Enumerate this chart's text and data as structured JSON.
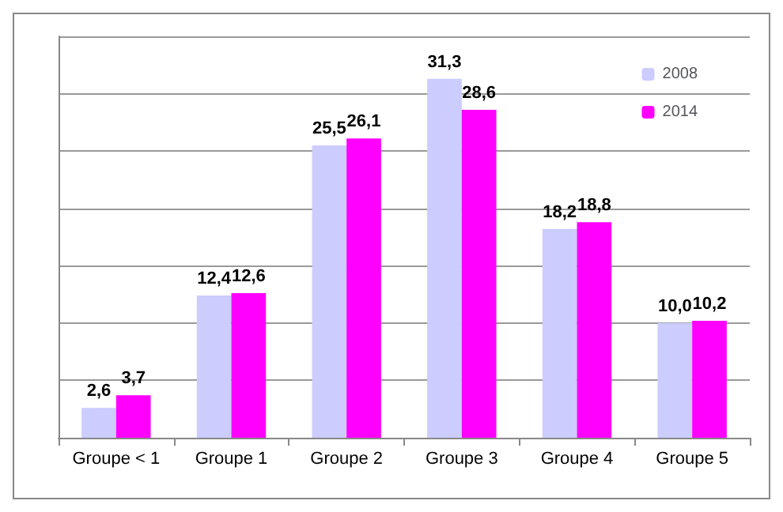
{
  "chart_data": {
    "type": "bar",
    "categories": [
      "Groupe < 1",
      "Groupe 1",
      "Groupe 2",
      "Groupe 3",
      "Groupe 4",
      "Groupe 5"
    ],
    "series": [
      {
        "name": "2008",
        "color": "#ccccff",
        "values": [
          2.6,
          12.4,
          25.5,
          31.3,
          18.2,
          10.0
        ],
        "value_labels": [
          "2,6",
          "12,4",
          "25,5",
          "31,3",
          "18,2",
          "10,0"
        ]
      },
      {
        "name": "2014",
        "color": "#ff00ff",
        "values": [
          3.7,
          12.6,
          26.1,
          28.6,
          18.8,
          10.2
        ],
        "value_labels": [
          "3,7",
          "12,6",
          "26,1",
          "28,6",
          "18,8",
          "10,2"
        ]
      }
    ],
    "ylim": [
      0,
      35
    ],
    "yticks": [
      {
        "value": 0,
        "label": null
      },
      {
        "value": 5,
        "label": null
      },
      {
        "value": 10,
        "label": null
      },
      {
        "value": 15,
        "label": null
      },
      {
        "value": 20,
        "label": null
      },
      {
        "value": 25,
        "label": null
      },
      {
        "value": 30,
        "label": null
      },
      {
        "value": 35,
        "label": null
      }
    ],
    "tick_labels": "x",
    "grid": "y",
    "legend": "top right"
  }
}
